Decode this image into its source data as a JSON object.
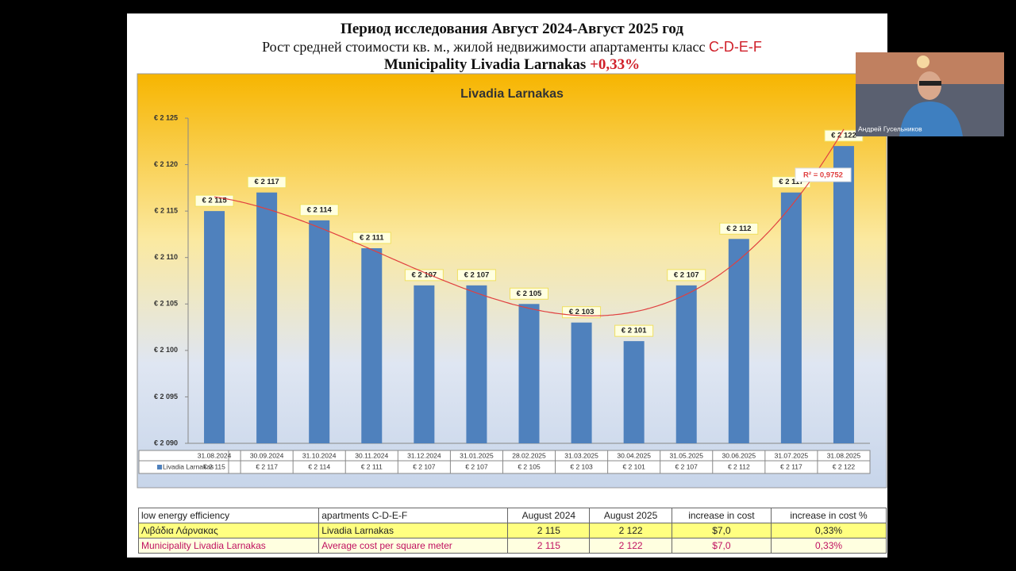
{
  "header": {
    "title": "Период исследования Август 2024-Август 2025 год",
    "subtitle": "Рост средней стоимости кв. м., жилой недвижимости апартаменты класс",
    "subtitle_highlight": "C-D-E-F",
    "line3": "Municipality Livadia Larnakas",
    "line3_highlight": "+0,33%"
  },
  "chart_data": {
    "type": "bar",
    "title": "Livadia Larnakas",
    "categories": [
      "31.08.2024",
      "30.09.2024",
      "31.10.2024",
      "30.11.2024",
      "31.12.2024",
      "31.01.2025",
      "28.02.2025",
      "31.03.2025",
      "30.04.2025",
      "31.05.2025",
      "30.06.2025",
      "31.07.2025",
      "31.08.2025"
    ],
    "series": [
      {
        "name": "Livadia Larnakas",
        "color": "#4f81bd",
        "values": [
          2115,
          2117,
          2114,
          2111,
          2107,
          2107,
          2105,
          2103,
          2101,
          2107,
          2112,
          2117,
          2122
        ],
        "value_labels": [
          "€ 2 115",
          "€ 2 117",
          "€ 2 114",
          "€ 2 111",
          "€ 2 107",
          "€ 2 107",
          "€ 2 105",
          "€ 2 103",
          "€ 2 101",
          "€ 2 107",
          "€ 2 112",
          "€ 2 117",
          "€ 2 122"
        ]
      }
    ],
    "ylim": [
      2090,
      2125
    ],
    "yticks": [
      {
        "value": 2090,
        "label": "€ 2 090"
      },
      {
        "value": 2095,
        "label": "€ 2 095"
      },
      {
        "value": 2100,
        "label": "€ 2 100"
      },
      {
        "value": 2105,
        "label": "€ 2 105"
      },
      {
        "value": 2110,
        "label": "€ 2 110"
      },
      {
        "value": 2115,
        "label": "€ 2 115"
      },
      {
        "value": 2120,
        "label": "€ 2 120"
      },
      {
        "value": 2125,
        "label": "€ 2 125"
      }
    ],
    "grid": false,
    "trendline": {
      "label": "R² = 0,9752",
      "color": "#e04040"
    }
  },
  "table": {
    "header": [
      "low energy efficiency",
      "apartments C-D-E-F",
      "August 2024",
      "August 2025",
      "increase in cost",
      "increase in cost %"
    ],
    "rows": [
      [
        "Λιβάδια Λάρνακας",
        "Livadia Larnakas",
        "2 115",
        "2 122",
        "$7,0",
        "0,33%"
      ],
      [
        "Municipality Livadia Larnakas",
        "Average cost per square meter",
        "2 115",
        "2 122",
        "$7,0",
        "0,33%"
      ]
    ]
  },
  "webcam": {
    "name": "Андрей Гусельников"
  }
}
